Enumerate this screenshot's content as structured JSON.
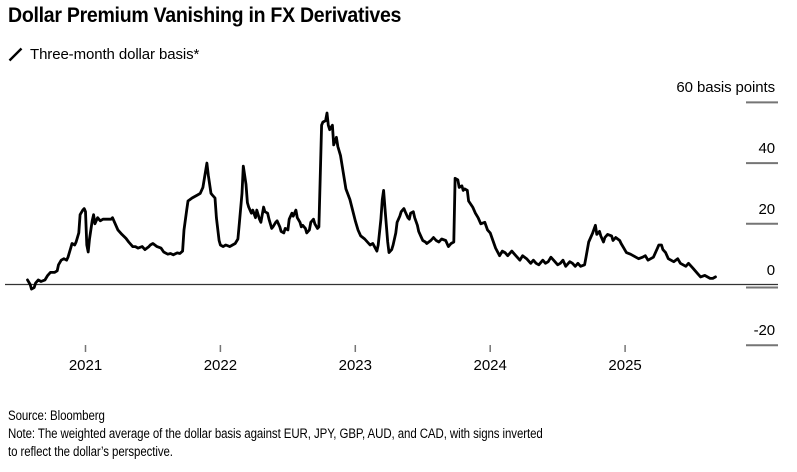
{
  "header": {
    "title": "Dollar Premium Vanishing in FX Derivatives"
  },
  "legend": {
    "label": "Three-month dollar basis*",
    "series_color": "#000000"
  },
  "footer": {
    "source": "Source: Bloomberg",
    "note_line1": "Note: The weighted average of the dollar basis against EUR, JPY, GBP, AUD, and CAD, with signs inverted",
    "note_line2": "to reflect the dollar’s perspective."
  },
  "chart_data": {
    "type": "line",
    "title": "Dollar Premium Vanishing in FX Derivatives",
    "xlabel": "",
    "ylabel": "basis points",
    "xlim": [
      2020.5,
      2025.75
    ],
    "ylim": [
      -27,
      64
    ],
    "grid": "zero-line-only",
    "legend_position": "top-left",
    "x_ticks": [
      {
        "value": 2021,
        "label": "2021"
      },
      {
        "value": 2022,
        "label": "2022"
      },
      {
        "value": 2023,
        "label": "2023"
      },
      {
        "value": 2024,
        "label": "2024"
      },
      {
        "value": 2025,
        "label": "2025"
      }
    ],
    "y_ticks": [
      {
        "value": 60,
        "label": "60 basis points"
      },
      {
        "value": 40,
        "label": "40"
      },
      {
        "value": 20,
        "label": "20"
      },
      {
        "value": 0,
        "label": "0"
      },
      {
        "value": -20,
        "label": "-20"
      }
    ],
    "series": [
      {
        "name": "Three-month dollar basis*",
        "color": "#000000",
        "points": [
          [
            2020.57,
            1.5
          ],
          [
            2020.59,
            0
          ],
          [
            2020.6,
            -1.5
          ],
          [
            2020.62,
            -1
          ],
          [
            2020.63,
            0.5
          ],
          [
            2020.65,
            1.5
          ],
          [
            2020.67,
            1
          ],
          [
            2020.7,
            1.5
          ],
          [
            2020.72,
            3
          ],
          [
            2020.74,
            4
          ],
          [
            2020.77,
            4
          ],
          [
            2020.79,
            4.5
          ],
          [
            2020.8,
            6.5
          ],
          [
            2020.82,
            8
          ],
          [
            2020.84,
            8.5
          ],
          [
            2020.86,
            8
          ],
          [
            2020.87,
            9
          ],
          [
            2020.89,
            12
          ],
          [
            2020.9,
            13.5
          ],
          [
            2020.92,
            13
          ],
          [
            2020.93,
            14
          ],
          [
            2020.95,
            17
          ],
          [
            2020.96,
            23
          ],
          [
            2020.98,
            24.5
          ],
          [
            2020.99,
            25
          ],
          [
            2021.0,
            24
          ],
          [
            2021.01,
            13
          ],
          [
            2021.02,
            10.7
          ],
          [
            2021.03,
            15
          ],
          [
            2021.05,
            21
          ],
          [
            2021.06,
            23
          ],
          [
            2021.07,
            20
          ],
          [
            2021.09,
            22
          ],
          [
            2021.11,
            21
          ],
          [
            2021.13,
            21.5
          ],
          [
            2021.16,
            21.5
          ],
          [
            2021.19,
            21.5
          ],
          [
            2021.2,
            22
          ],
          [
            2021.22,
            20
          ],
          [
            2021.24,
            18
          ],
          [
            2021.27,
            16.5
          ],
          [
            2021.3,
            15.2
          ],
          [
            2021.32,
            14
          ],
          [
            2021.35,
            12.5
          ],
          [
            2021.37,
            12.5
          ],
          [
            2021.39,
            12
          ],
          [
            2021.42,
            12.5
          ],
          [
            2021.44,
            11.5
          ],
          [
            2021.47,
            12.5
          ],
          [
            2021.48,
            13
          ],
          [
            2021.5,
            13.5
          ],
          [
            2021.53,
            12.5
          ],
          [
            2021.56,
            12
          ],
          [
            2021.58,
            10.7
          ],
          [
            2021.61,
            10
          ],
          [
            2021.63,
            10.2
          ],
          [
            2021.65,
            9.8
          ],
          [
            2021.68,
            10.4
          ],
          [
            2021.7,
            10.2
          ],
          [
            2021.72,
            11
          ],
          [
            2021.73,
            18
          ],
          [
            2021.75,
            24.5
          ],
          [
            2021.76,
            27.5
          ],
          [
            2021.79,
            28.5
          ],
          [
            2021.81,
            29
          ],
          [
            2021.83,
            29.5
          ],
          [
            2021.85,
            30
          ],
          [
            2021.87,
            32
          ],
          [
            2021.9,
            40
          ],
          [
            2021.91,
            36
          ],
          [
            2021.93,
            30
          ],
          [
            2021.94,
            29.5
          ],
          [
            2021.96,
            28.5
          ],
          [
            2021.97,
            22
          ],
          [
            2021.99,
            14.5
          ],
          [
            2022.0,
            13
          ],
          [
            2022.02,
            12.5
          ],
          [
            2022.04,
            13
          ],
          [
            2022.07,
            12.5
          ],
          [
            2022.09,
            13
          ],
          [
            2022.11,
            13.5
          ],
          [
            2022.13,
            15
          ],
          [
            2022.14,
            20
          ],
          [
            2022.16,
            30
          ],
          [
            2022.17,
            39
          ],
          [
            2022.19,
            33
          ],
          [
            2022.2,
            27
          ],
          [
            2022.21,
            25.5
          ],
          [
            2022.23,
            23.5
          ],
          [
            2022.24,
            24.5
          ],
          [
            2022.26,
            22
          ],
          [
            2022.27,
            24.5
          ],
          [
            2022.29,
            21.5
          ],
          [
            2022.3,
            20.5
          ],
          [
            2022.32,
            25.5
          ],
          [
            2022.33,
            24
          ],
          [
            2022.35,
            23.5
          ],
          [
            2022.36,
            21.5
          ],
          [
            2022.38,
            18.5
          ],
          [
            2022.39,
            19
          ],
          [
            2022.41,
            20.5
          ],
          [
            2022.42,
            21
          ],
          [
            2022.44,
            19
          ],
          [
            2022.45,
            17.5
          ],
          [
            2022.47,
            17
          ],
          [
            2022.48,
            18.5
          ],
          [
            2022.5,
            18
          ],
          [
            2022.51,
            21.5
          ],
          [
            2022.53,
            23.5
          ],
          [
            2022.54,
            22.5
          ],
          [
            2022.56,
            24.5
          ],
          [
            2022.57,
            22
          ],
          [
            2022.59,
            20.5
          ],
          [
            2022.6,
            19
          ],
          [
            2022.61,
            19.5
          ],
          [
            2022.63,
            18.5
          ],
          [
            2022.64,
            17
          ],
          [
            2022.66,
            18
          ],
          [
            2022.67,
            20.5
          ],
          [
            2022.69,
            21.5
          ],
          [
            2022.7,
            20
          ],
          [
            2022.72,
            18.5
          ],
          [
            2022.73,
            19
          ],
          [
            2022.74,
            35
          ],
          [
            2022.75,
            52.5
          ],
          [
            2022.76,
            53.5
          ],
          [
            2022.78,
            54
          ],
          [
            2022.79,
            56.5
          ],
          [
            2022.8,
            52.5
          ],
          [
            2022.81,
            51
          ],
          [
            2022.83,
            52.5
          ],
          [
            2022.84,
            46
          ],
          [
            2022.86,
            48.5
          ],
          [
            2022.87,
            45.5
          ],
          [
            2022.89,
            42.5
          ],
          [
            2022.91,
            37
          ],
          [
            2022.93,
            31.5
          ],
          [
            2022.96,
            28
          ],
          [
            2022.98,
            24.5
          ],
          [
            2023.0,
            21
          ],
          [
            2023.02,
            18
          ],
          [
            2023.04,
            16
          ],
          [
            2023.07,
            15
          ],
          [
            2023.09,
            14
          ],
          [
            2023.11,
            13
          ],
          [
            2023.13,
            13.5
          ],
          [
            2023.16,
            11
          ],
          [
            2023.17,
            13
          ],
          [
            2023.19,
            21.5
          ],
          [
            2023.2,
            28
          ],
          [
            2023.21,
            31
          ],
          [
            2023.22,
            25
          ],
          [
            2023.24,
            14
          ],
          [
            2023.25,
            10.5
          ],
          [
            2023.27,
            11.5
          ],
          [
            2023.28,
            13
          ],
          [
            2023.3,
            17
          ],
          [
            2023.31,
            20.5
          ],
          [
            2023.33,
            22.5
          ],
          [
            2023.34,
            24
          ],
          [
            2023.36,
            25
          ],
          [
            2023.37,
            24
          ],
          [
            2023.39,
            22
          ],
          [
            2023.4,
            21.5
          ],
          [
            2023.41,
            23.5
          ],
          [
            2023.43,
            24
          ],
          [
            2023.44,
            22
          ],
          [
            2023.46,
            19.5
          ],
          [
            2023.47,
            17.5
          ],
          [
            2023.49,
            15.5
          ],
          [
            2023.5,
            14.5
          ],
          [
            2023.52,
            14
          ],
          [
            2023.53,
            13.5
          ],
          [
            2023.56,
            14.5
          ],
          [
            2023.58,
            15.5
          ],
          [
            2023.6,
            14.5
          ],
          [
            2023.62,
            14
          ],
          [
            2023.64,
            15
          ],
          [
            2023.67,
            14.5
          ],
          [
            2023.69,
            12.5
          ],
          [
            2023.71,
            13.5
          ],
          [
            2023.73,
            14
          ],
          [
            2023.74,
            35
          ],
          [
            2023.76,
            34.5
          ],
          [
            2023.77,
            32
          ],
          [
            2023.79,
            32.5
          ],
          [
            2023.8,
            31
          ],
          [
            2023.81,
            31.5
          ],
          [
            2023.83,
            31
          ],
          [
            2023.84,
            27.5
          ],
          [
            2023.87,
            25.5
          ],
          [
            2023.89,
            23.5
          ],
          [
            2023.91,
            22
          ],
          [
            2023.93,
            20
          ],
          [
            2023.96,
            20.5
          ],
          [
            2023.98,
            18
          ],
          [
            2024.0,
            17
          ],
          [
            2024.02,
            14.5
          ],
          [
            2024.04,
            12
          ],
          [
            2024.07,
            9.5
          ],
          [
            2024.09,
            11
          ],
          [
            2024.11,
            10.5
          ],
          [
            2024.13,
            9.5
          ],
          [
            2024.16,
            11
          ],
          [
            2024.18,
            10
          ],
          [
            2024.2,
            9
          ],
          [
            2024.22,
            8
          ],
          [
            2024.24,
            9.5
          ],
          [
            2024.27,
            8.5
          ],
          [
            2024.3,
            7
          ],
          [
            2024.32,
            8
          ],
          [
            2024.34,
            7
          ],
          [
            2024.36,
            6.5
          ],
          [
            2024.39,
            8
          ],
          [
            2024.41,
            7
          ],
          [
            2024.43,
            7.5
          ],
          [
            2024.45,
            9
          ],
          [
            2024.47,
            8
          ],
          [
            2024.5,
            6.5
          ],
          [
            2024.52,
            7
          ],
          [
            2024.54,
            8
          ],
          [
            2024.56,
            6
          ],
          [
            2024.59,
            7.5
          ],
          [
            2024.61,
            7
          ],
          [
            2024.63,
            6
          ],
          [
            2024.65,
            7
          ],
          [
            2024.67,
            6
          ],
          [
            2024.7,
            6.5
          ],
          [
            2024.71,
            9
          ],
          [
            2024.73,
            14
          ],
          [
            2024.76,
            17
          ],
          [
            2024.78,
            19.5
          ],
          [
            2024.79,
            16.5
          ],
          [
            2024.81,
            17.5
          ],
          [
            2024.82,
            16
          ],
          [
            2024.84,
            14
          ],
          [
            2024.85,
            15.5
          ],
          [
            2024.87,
            16.5
          ],
          [
            2024.9,
            16
          ],
          [
            2024.91,
            14.5
          ],
          [
            2024.93,
            15.5
          ],
          [
            2024.96,
            14.5
          ],
          [
            2024.97,
            13.5
          ],
          [
            2024.99,
            12
          ],
          [
            2025.01,
            10.5
          ],
          [
            2025.04,
            10
          ],
          [
            2025.06,
            9.5
          ],
          [
            2025.08,
            9
          ],
          [
            2025.1,
            8.5
          ],
          [
            2025.13,
            9
          ],
          [
            2025.15,
            9.5
          ],
          [
            2025.17,
            8
          ],
          [
            2025.19,
            8.5
          ],
          [
            2025.21,
            9
          ],
          [
            2025.24,
            12
          ],
          [
            2025.25,
            13
          ],
          [
            2025.27,
            13
          ],
          [
            2025.28,
            11.5
          ],
          [
            2025.3,
            10.5
          ],
          [
            2025.32,
            8.5
          ],
          [
            2025.34,
            8
          ],
          [
            2025.36,
            7.5
          ],
          [
            2025.39,
            8.5
          ],
          [
            2025.41,
            7
          ],
          [
            2025.43,
            6.5
          ],
          [
            2025.45,
            6
          ],
          [
            2025.47,
            7
          ],
          [
            2025.5,
            5.5
          ],
          [
            2025.52,
            4.5
          ],
          [
            2025.54,
            3.5
          ],
          [
            2025.56,
            2.5
          ],
          [
            2025.59,
            3
          ],
          [
            2025.61,
            2.5
          ],
          [
            2025.63,
            2
          ],
          [
            2025.65,
            2
          ],
          [
            2025.67,
            2.5
          ]
        ]
      }
    ],
    "colors": {
      "series": "#000000",
      "zero_line": "#333333",
      "tick": "#757575",
      "text": "#000000"
    }
  }
}
